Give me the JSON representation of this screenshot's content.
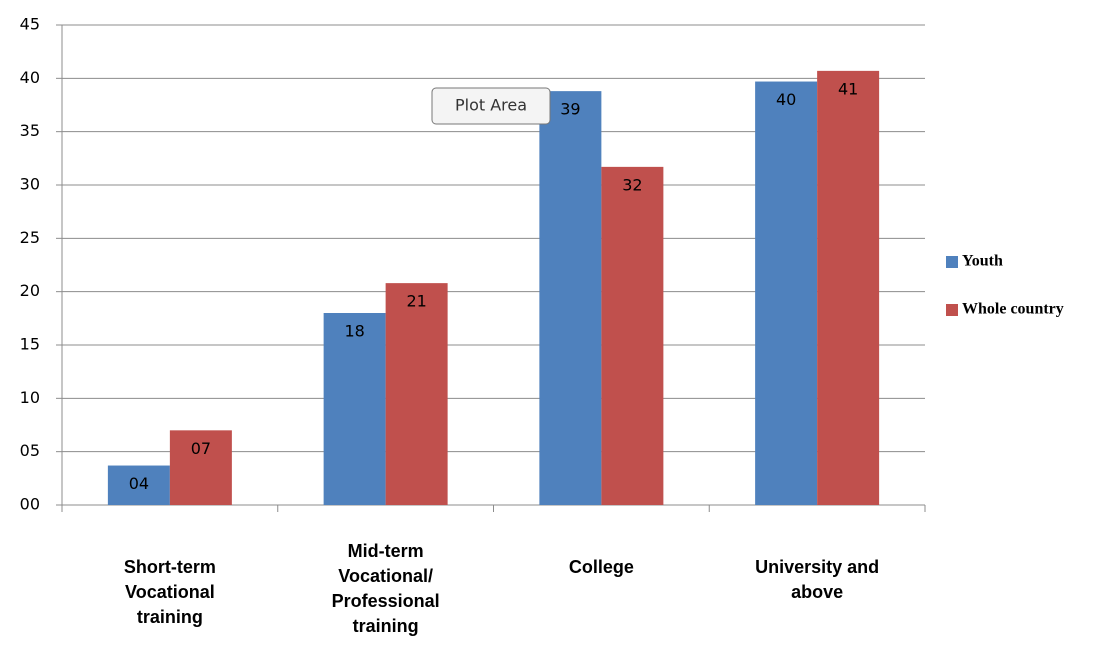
{
  "chart_data": {
    "type": "bar",
    "categories": [
      "Short-term Vocational training",
      "Mid-term Vocational/ Professional training",
      "College",
      "University and above"
    ],
    "series": [
      {
        "name": "Youth",
        "color": "#4f81bd",
        "values": [
          3.7,
          18,
          38.8,
          39.7
        ],
        "value_labels": [
          "04",
          "18",
          "39",
          "40"
        ]
      },
      {
        "name": "Whole country",
        "color": "#c0504d",
        "values": [
          7,
          20.8,
          31.7,
          40.7
        ],
        "value_labels": [
          "07",
          "21",
          "32",
          "41"
        ]
      }
    ],
    "ylim": [
      0,
      45
    ],
    "yticks": [
      {
        "value": 0,
        "label": "00"
      },
      {
        "value": 5,
        "label": "05"
      },
      10,
      15,
      20,
      25,
      30,
      35,
      40,
      45
    ],
    "grid": true,
    "legend": "right",
    "tooltip": "Plot Area"
  }
}
